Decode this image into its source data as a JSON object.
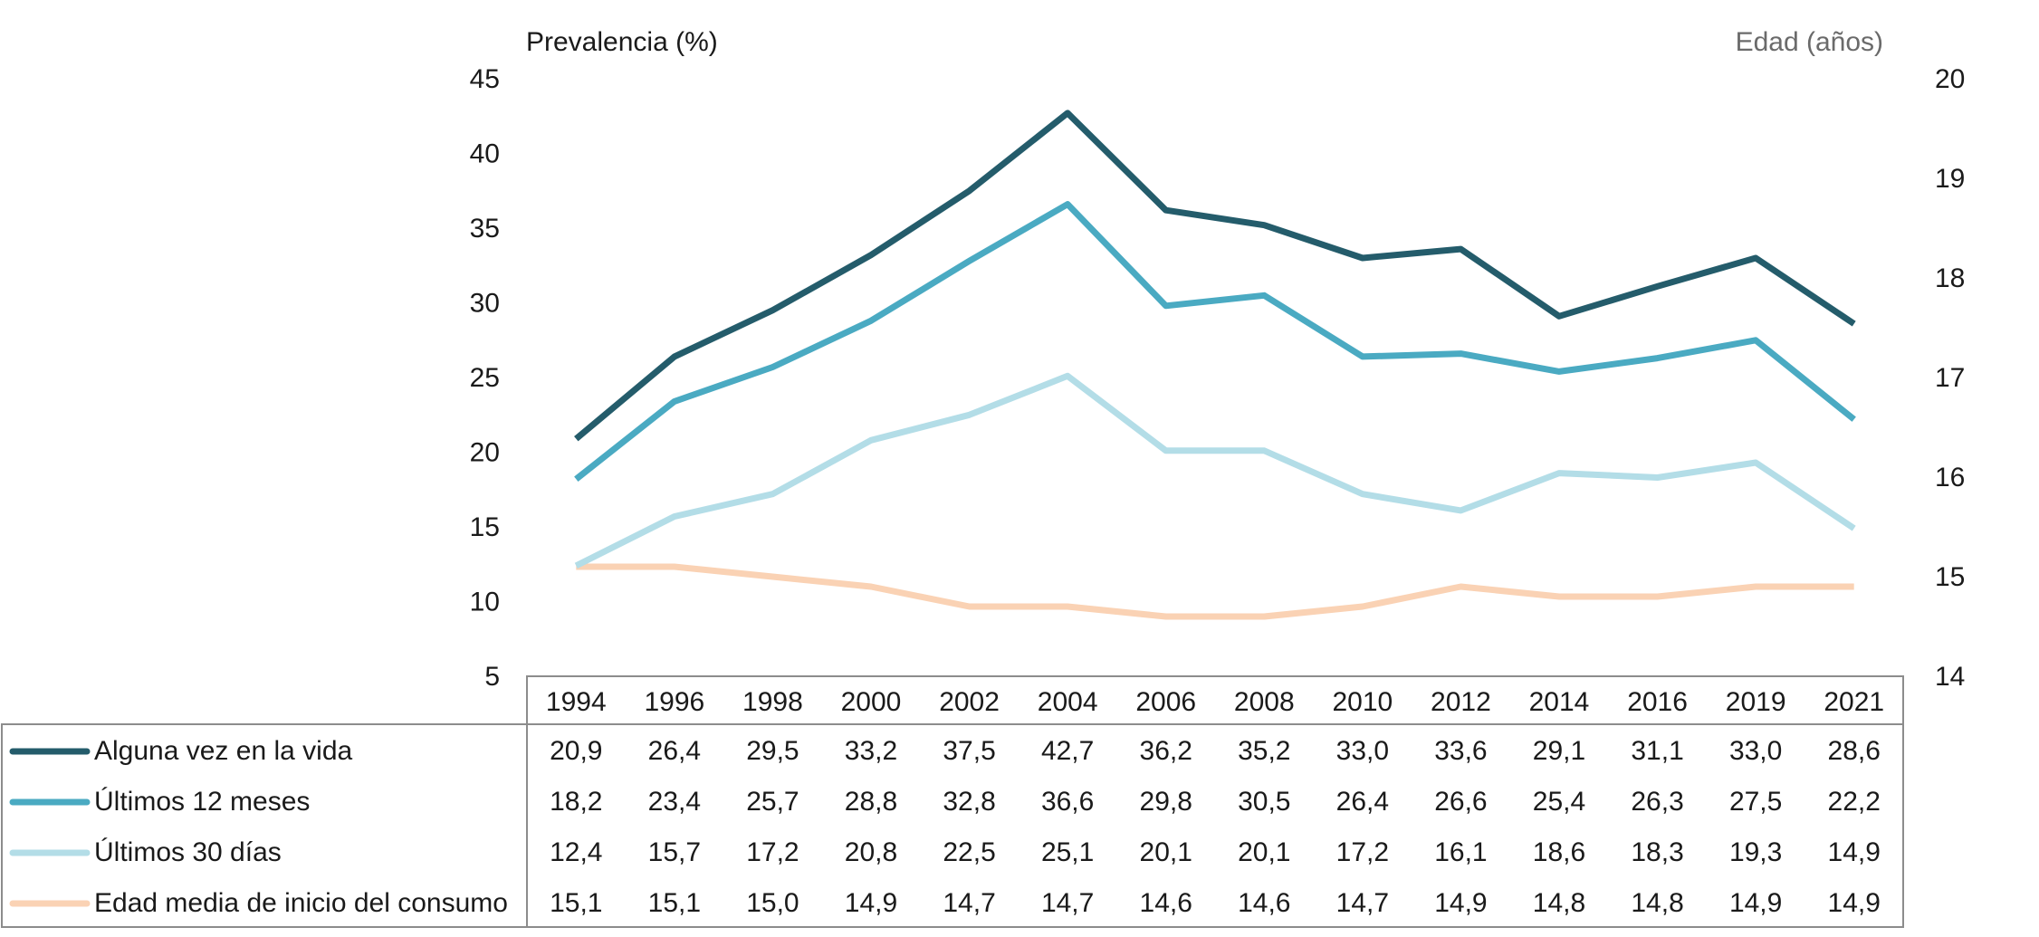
{
  "chart_data": {
    "type": "line",
    "left_axis_title": "Prevalencia (%)",
    "right_axis_title": "Edad (años)",
    "x": [
      "1994",
      "1996",
      "1998",
      "2000",
      "2002",
      "2004",
      "2006",
      "2008",
      "2010",
      "2012",
      "2014",
      "2016",
      "2019",
      "2021"
    ],
    "y_left_lim": [
      5,
      45
    ],
    "y_left_ticks": [
      "45",
      "40",
      "35",
      "30",
      "25",
      "20",
      "15",
      "10",
      "5"
    ],
    "y_right_lim": [
      14,
      20
    ],
    "y_right_ticks": [
      "20",
      "19",
      "18",
      "17",
      "16",
      "15",
      "14"
    ],
    "grid": false,
    "legend_placement": "bottom data table",
    "series": [
      {
        "name": "Alguna vez en la vida",
        "axis": "left",
        "color": "#245c6b",
        "values": [
          20.9,
          26.4,
          29.5,
          33.2,
          37.5,
          42.7,
          36.2,
          35.2,
          33.0,
          33.6,
          29.1,
          31.1,
          33.0,
          28.6
        ],
        "labels": [
          "20,9",
          "26,4",
          "29,5",
          "33,2",
          "37,5",
          "42,7",
          "36,2",
          "35,2",
          "33,0",
          "33,6",
          "29,1",
          "31,1",
          "33,0",
          "28,6"
        ]
      },
      {
        "name": "Últimos 12 meses",
        "axis": "left",
        "color": "#4aaac2",
        "values": [
          18.2,
          23.4,
          25.7,
          28.8,
          32.8,
          36.6,
          29.8,
          30.5,
          26.4,
          26.6,
          25.4,
          26.3,
          27.5,
          22.2
        ],
        "labels": [
          "18,2",
          "23,4",
          "25,7",
          "28,8",
          "32,8",
          "36,6",
          "29,8",
          "30,5",
          "26,4",
          "26,6",
          "25,4",
          "26,3",
          "27,5",
          "22,2"
        ]
      },
      {
        "name": "Últimos 30 días",
        "axis": "left",
        "color": "#b3dde7",
        "values": [
          12.4,
          15.7,
          17.2,
          20.8,
          22.5,
          25.1,
          20.1,
          20.1,
          17.2,
          16.1,
          18.6,
          18.3,
          19.3,
          14.9
        ],
        "labels": [
          "12,4",
          "15,7",
          "17,2",
          "20,8",
          "22,5",
          "25,1",
          "20,1",
          "20,1",
          "17,2",
          "16,1",
          "18,6",
          "18,3",
          "19,3",
          "14,9"
        ]
      },
      {
        "name": "Edad media de inicio del consumo",
        "axis": "right",
        "color": "#fad2b4",
        "values": [
          15.1,
          15.1,
          15.0,
          14.9,
          14.7,
          14.7,
          14.6,
          14.6,
          14.7,
          14.9,
          14.8,
          14.8,
          14.9,
          14.9
        ],
        "labels": [
          "15,1",
          "15,1",
          "15,0",
          "14,9",
          "14,7",
          "14,7",
          "14,6",
          "14,6",
          "14,7",
          "14,9",
          "14,8",
          "14,8",
          "14,9",
          "14,9"
        ]
      }
    ]
  }
}
